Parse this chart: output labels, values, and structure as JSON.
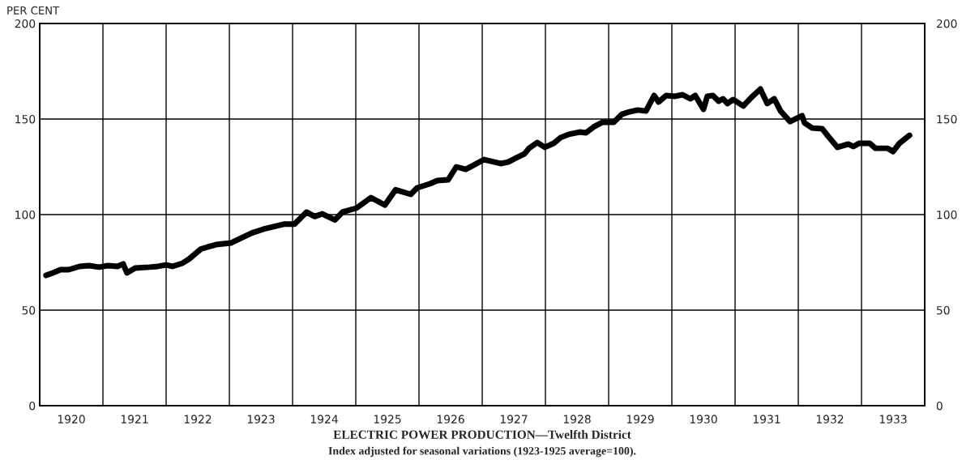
{
  "chart_data": {
    "type": "line",
    "title": "ELECTRIC POWER PRODUCTION—Twelfth District",
    "subtitle": "Index adjusted for seasonal variations (1923-1925 average=100).",
    "ylabel": "PER CENT",
    "x": [
      1920.1,
      1920.21,
      1920.33,
      1920.46,
      1920.63,
      1920.78,
      1920.94,
      1921.08,
      1921.23,
      1921.32,
      1921.38,
      1921.51,
      1921.74,
      1921.87,
      1922.0,
      1922.1,
      1922.26,
      1922.36,
      1922.55,
      1922.79,
      1923.03,
      1923.35,
      1923.54,
      1923.86,
      1924.03,
      1924.22,
      1924.35,
      1924.47,
      1924.67,
      1924.79,
      1925.01,
      1925.24,
      1925.46,
      1925.63,
      1925.87,
      1925.97,
      1926.17,
      1926.29,
      1926.46,
      1926.59,
      1926.74,
      1927.03,
      1927.29,
      1927.41,
      1927.54,
      1927.67,
      1927.74,
      1927.87,
      1927.99,
      1928.13,
      1928.24,
      1928.37,
      1928.54,
      1928.64,
      1928.76,
      1928.9,
      1929.08,
      1929.21,
      1929.33,
      1929.46,
      1929.59,
      1929.72,
      1929.79,
      1929.91,
      1930.05,
      1930.17,
      1930.29,
      1930.37,
      1930.5,
      1930.56,
      1930.65,
      1930.74,
      1930.81,
      1930.88,
      1930.97,
      1931.13,
      1931.26,
      1931.4,
      1931.51,
      1931.62,
      1931.72,
      1931.87,
      1932.06,
      1932.1,
      1932.22,
      1932.38,
      1932.47,
      1932.62,
      1932.79,
      1932.87,
      1932.96,
      1933.13,
      1933.22,
      1933.41,
      1933.5,
      1933.6,
      1933.76
    ],
    "series": [
      {
        "color": "#000000",
        "values": [
          68.2,
          69.5,
          71.2,
          71.2,
          72.9,
          73.3,
          72.5,
          73.3,
          72.9,
          74.2,
          69.5,
          72.0,
          72.5,
          72.9,
          73.7,
          72.9,
          74.6,
          76.7,
          82.0,
          84.3,
          85.2,
          90.3,
          92.4,
          95.0,
          95.0,
          101.3,
          99.0,
          100.4,
          97.2,
          101.3,
          103.4,
          108.9,
          105.0,
          113.0,
          110.6,
          114.0,
          116.1,
          117.8,
          118.2,
          125.0,
          123.7,
          128.8,
          126.7,
          127.5,
          129.7,
          131.8,
          134.7,
          137.7,
          135.2,
          137.3,
          140.3,
          142.0,
          143.2,
          142.8,
          145.8,
          148.3,
          148.3,
          152.5,
          153.8,
          154.7,
          154.2,
          162.3,
          158.9,
          162.3,
          161.9,
          162.7,
          160.6,
          162.3,
          155.1,
          161.9,
          162.3,
          159.3,
          160.6,
          158.1,
          160.2,
          156.8,
          161.4,
          165.7,
          158.1,
          160.6,
          154.2,
          148.7,
          151.7,
          147.9,
          145.3,
          144.9,
          141.1,
          135.2,
          136.9,
          135.6,
          137.3,
          137.3,
          134.7,
          134.7,
          133.0,
          137.3,
          141.5
        ]
      }
    ],
    "xlim": [
      1920,
      1934
    ],
    "xticks": [
      {
        "value": 1920,
        "label": null
      },
      {
        "value": 1920.5,
        "label": "1920"
      },
      {
        "value": 1921,
        "label": null
      },
      {
        "value": 1921.5,
        "label": "1921"
      },
      {
        "value": 1922,
        "label": null
      },
      {
        "value": 1922.5,
        "label": "1922"
      },
      {
        "value": 1923,
        "label": null
      },
      {
        "value": 1923.5,
        "label": "1923"
      },
      {
        "value": 1924,
        "label": null
      },
      {
        "value": 1924.5,
        "label": "1924"
      },
      {
        "value": 1925,
        "label": null
      },
      {
        "value": 1925.5,
        "label": "1925"
      },
      {
        "value": 1926,
        "label": null
      },
      {
        "value": 1926.5,
        "label": "1926"
      },
      {
        "value": 1927,
        "label": null
      },
      {
        "value": 1927.5,
        "label": "1927"
      },
      {
        "value": 1928,
        "label": null
      },
      {
        "value": 1928.5,
        "label": "1928"
      },
      {
        "value": 1929,
        "label": null
      },
      {
        "value": 1929.5,
        "label": "1929"
      },
      {
        "value": 1930,
        "label": null
      },
      {
        "value": 1930.5,
        "label": "1930"
      },
      {
        "value": 1931,
        "label": null
      },
      {
        "value": 1931.5,
        "label": "1931"
      },
      {
        "value": 1932,
        "label": null
      },
      {
        "value": 1932.5,
        "label": "1932"
      },
      {
        "value": 1933,
        "label": null
      },
      {
        "value": 1933.5,
        "label": "1933"
      },
      {
        "value": 1934,
        "label": null
      }
    ],
    "ylim": [
      0,
      200
    ],
    "yticks": [
      0,
      50,
      100,
      150,
      200
    ],
    "y2lim": [
      0,
      200
    ],
    "y2ticks": [
      0,
      50,
      100,
      150,
      200
    ],
    "grid": true,
    "legend": false,
    "marker": "none",
    "line_style": "solid"
  }
}
